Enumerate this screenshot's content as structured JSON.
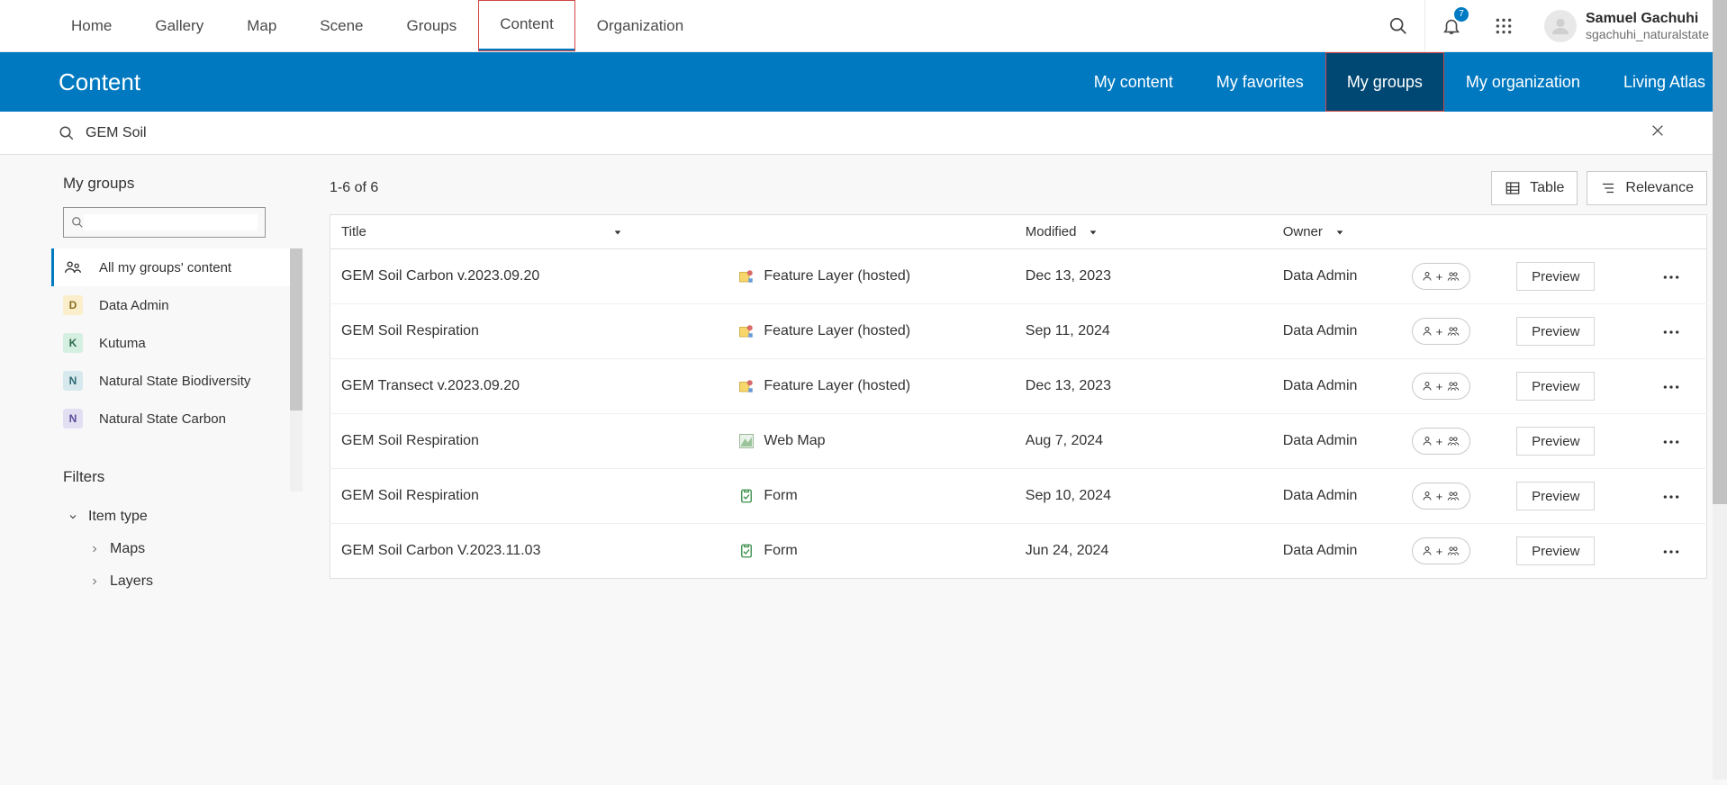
{
  "topnav": {
    "items": [
      "Home",
      "Gallery",
      "Map",
      "Scene",
      "Groups",
      "Content",
      "Organization"
    ],
    "active_index": 5,
    "boxed_index": 5
  },
  "notifications_count": "7",
  "user": {
    "name": "Samuel Gachuhi",
    "subtitle": "sgachuhi_naturalstate"
  },
  "bluebar": {
    "title": "Content",
    "items": [
      "My content",
      "My favorites",
      "My groups",
      "My organization",
      "Living Atlas"
    ],
    "active_index": 2,
    "boxed_index": 2
  },
  "search": {
    "value": "GEM Soil"
  },
  "sidebar": {
    "heading": "My groups",
    "all_label": "All my groups' content",
    "groups": [
      {
        "initial": "D",
        "label": "Data Admin",
        "chip_bg": "#fbeecb",
        "chip_fg": "#8a6d1e"
      },
      {
        "initial": "K",
        "label": "Kutuma",
        "chip_bg": "#d5efe0",
        "chip_fg": "#2e6b4a"
      },
      {
        "initial": "N",
        "label": "Natural State Biodiversity",
        "chip_bg": "#d7e9ec",
        "chip_fg": "#2e6b74"
      },
      {
        "initial": "N",
        "label": "Natural State Carbon",
        "chip_bg": "#e2dff2",
        "chip_fg": "#5a4e9c"
      }
    ],
    "filters_heading": "Filters",
    "filter_item_type": "Item type",
    "filter_maps": "Maps",
    "filter_layers": "Layers"
  },
  "content": {
    "count_label": "1-6 of 6",
    "table_btn": "Table",
    "relevance_btn": "Relevance",
    "columns": {
      "title": "Title",
      "modified": "Modified",
      "owner": "Owner"
    },
    "preview_label": "Preview",
    "rows": [
      {
        "title": "GEM Soil Carbon v.2023.09.20",
        "type": "Feature Layer (hosted)",
        "type_kind": "feature",
        "modified": "Dec 13, 2023",
        "owner": "Data Admin"
      },
      {
        "title": "GEM Soil Respiration",
        "type": "Feature Layer (hosted)",
        "type_kind": "feature",
        "modified": "Sep 11, 2024",
        "owner": "Data Admin"
      },
      {
        "title": "GEM Transect v.2023.09.20",
        "type": "Feature Layer (hosted)",
        "type_kind": "feature",
        "modified": "Dec 13, 2023",
        "owner": "Data Admin"
      },
      {
        "title": "GEM Soil Respiration",
        "type": "Web Map",
        "type_kind": "webmap",
        "modified": "Aug 7, 2024",
        "owner": "Data Admin"
      },
      {
        "title": "GEM Soil Respiration",
        "type": "Form",
        "type_kind": "form",
        "modified": "Sep 10, 2024",
        "owner": "Data Admin"
      },
      {
        "title": "GEM Soil Carbon V.2023.11.03",
        "type": "Form",
        "type_kind": "form",
        "modified": "Jun 24, 2024",
        "owner": "Data Admin"
      }
    ]
  },
  "colors": {
    "brand_blue": "#0079c1",
    "dark_blue": "#004874",
    "highlight_red": "#d24545"
  }
}
